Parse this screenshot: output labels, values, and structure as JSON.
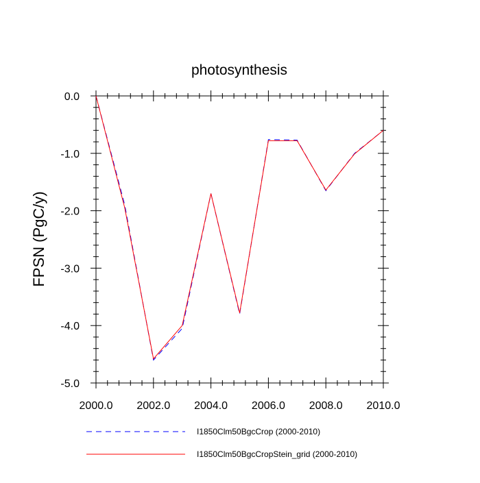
{
  "chart_data": {
    "type": "line",
    "title": "photosynthesis",
    "xlabel": "",
    "ylabel": "FPSN  (PgC/y)",
    "xlim": [
      2000,
      2010
    ],
    "ylim": [
      -5,
      0
    ],
    "x_ticks": [
      2000,
      2002,
      2004,
      2006,
      2008,
      2010
    ],
    "x_tick_labels": [
      "2000.0",
      "2002.0",
      "2004.0",
      "2006.0",
      "2008.0",
      "2010.0"
    ],
    "y_ticks": [
      0,
      -1,
      -2,
      -3,
      -4,
      -5
    ],
    "y_tick_labels": [
      "0.0",
      "-1.0",
      "-2.0",
      "-3.0",
      "-4.0",
      "-5.0"
    ],
    "grid": false,
    "legend_position": "bottom",
    "x": [
      2000,
      2001,
      2002,
      2003,
      2004,
      2005,
      2006,
      2007,
      2008,
      2009,
      2010
    ],
    "series": [
      {
        "name": "I1850Clm50BgcCrop (2000-2010)",
        "values": [
          0.0,
          -1.9,
          -4.6,
          -4.05,
          -1.7,
          -3.8,
          -0.76,
          -0.77,
          -1.65,
          -1.0,
          -0.6
        ],
        "color": "#0000ff",
        "style": "dashed"
      },
      {
        "name": "I1850Clm50BgcCropStein_grid (2000-2010)",
        "values": [
          0.0,
          -1.95,
          -4.58,
          -4.0,
          -1.7,
          -3.78,
          -0.78,
          -0.78,
          -1.64,
          -1.01,
          -0.6
        ],
        "color": "#ff0000",
        "style": "solid"
      }
    ]
  }
}
